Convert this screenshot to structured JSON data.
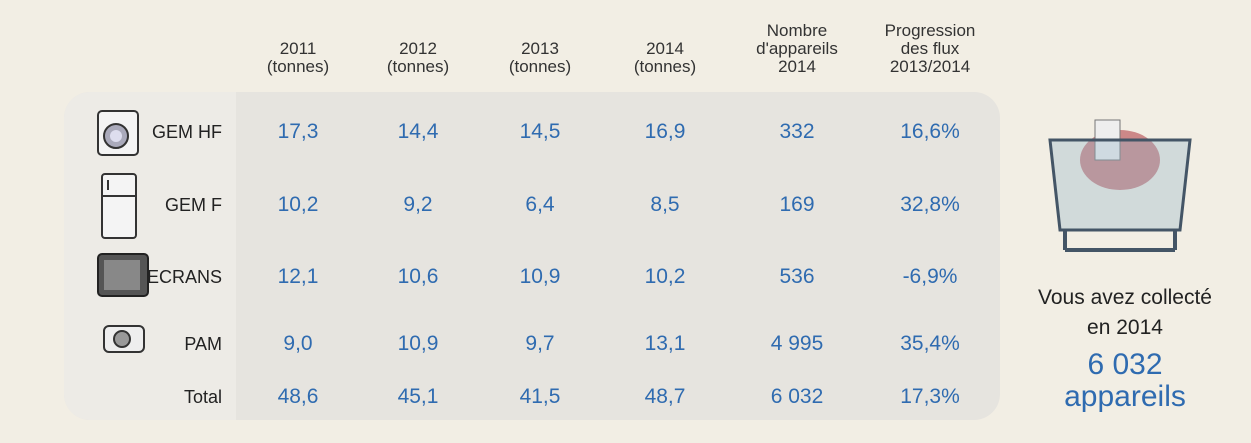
{
  "table": {
    "header": [
      [
        "2011",
        "(tonnes)"
      ],
      [
        "2012",
        "(tonnes)"
      ],
      [
        "2013",
        "(tonnes)"
      ],
      [
        "2014",
        "(tonnes)"
      ],
      [
        "Nombre",
        "d'appareils",
        "2014"
      ],
      [
        "Progression",
        "des flux",
        "2013/2014"
      ]
    ],
    "rows": [
      {
        "label": "GEM HF",
        "cells": [
          "17,3",
          "14,4",
          "14,5",
          "16,9",
          "332",
          "16,6%"
        ]
      },
      {
        "label": "GEM F",
        "cells": [
          "10,2",
          "9,2",
          "6,4",
          "8,5",
          "169",
          "32,8%"
        ]
      },
      {
        "label": "ECRANS",
        "cells": [
          "12,1",
          "10,6",
          "10,9",
          "10,2",
          "536",
          "-6,9%"
        ]
      },
      {
        "label": "PAM",
        "cells": [
          "9,0",
          "10,9",
          "9,7",
          "13,1",
          "4 995",
          "35,4%"
        ]
      },
      {
        "label": "Total",
        "cells": [
          "48,6",
          "45,1",
          "41,5",
          "48,7",
          "6 032",
          "17,3%"
        ]
      }
    ]
  },
  "summary": {
    "lines": [
      "Vous avez collecté",
      "en 2014"
    ],
    "count": "6 032",
    "unit": "appareils"
  }
}
